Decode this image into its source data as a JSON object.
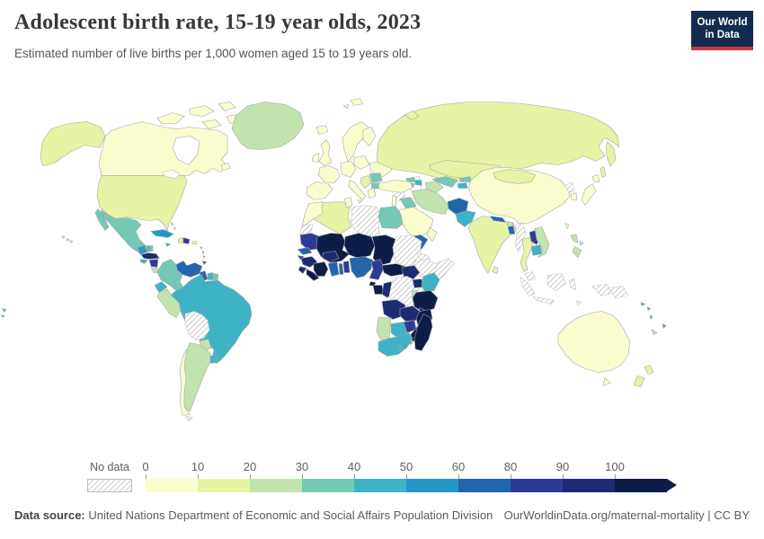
{
  "header": {
    "title": "Adolescent birth rate, 15-19 year olds, 2023",
    "subtitle": "Estimated number of live births per 1,000 women aged 15 to 19 years old."
  },
  "logo": {
    "line1": "Our World",
    "line2": "in Data",
    "bg_color": "#132b4e",
    "stripe_color": "#cf3944"
  },
  "legend": {
    "no_data_label": "No data",
    "ticks": [
      "0",
      "10",
      "20",
      "30",
      "40",
      "50",
      "60",
      "80",
      "90",
      "100"
    ]
  },
  "footer": {
    "source_label": "Data source:",
    "source_text": " United Nations Department of Economic and Social Affairs Population Division",
    "link_text": "OurWorldinData.org/maternal-mortality | CC BY"
  },
  "chart_data": {
    "type": "choropleth",
    "title": "Adolescent birth rate, 15-19 year olds, 2023",
    "metric": "Estimated number of live births per 1,000 women aged 15 to 19 years old",
    "year": 2023,
    "legend_position": "bottom",
    "bins": [
      {
        "range": "0-10",
        "color": "#fbfccd"
      },
      {
        "range": "10-20",
        "color": "#e7f3a5"
      },
      {
        "range": "20-30",
        "color": "#c2e3ae"
      },
      {
        "range": "30-40",
        "color": "#74c8b4"
      },
      {
        "range": "40-50",
        "color": "#3fb3c6"
      },
      {
        "range": "50-60",
        "color": "#2497c6"
      },
      {
        "range": "60-80",
        "color": "#2365ab"
      },
      {
        "range": "80-90",
        "color": "#2d3a96"
      },
      {
        "range": "90-100",
        "color": "#1e2b72"
      },
      {
        "range": "100+",
        "color": "#0e1c48"
      }
    ],
    "no_data": {
      "label": "No data",
      "pattern": "diagonal-hatch"
    },
    "countries": {
      "canada": "0-10",
      "united-states": "10-20",
      "greenland": "20-30",
      "mexico": "30-40",
      "guatemala": "50-60",
      "belize": "40-50",
      "honduras": "90-100",
      "el-salvador": "40-50",
      "nicaragua": "80-90",
      "costa-rica": "20-30",
      "panama": "60-80",
      "cuba": "50-60",
      "jamaica": "40-50",
      "haiti": "10-20",
      "dominican-republic": "80-90",
      "puerto-rico": "10-20",
      "bahamas": "0-10",
      "lesser-antilles": "40-50",
      "trinidad-and-tobago": "60-80",
      "colombia": "30-40",
      "venezuela": "60-80",
      "guyana": "60-80",
      "suriname": "40-50",
      "french-guiana": "30-40",
      "ecuador": "40-50",
      "peru": "20-30",
      "brazil": "40-50",
      "bolivia": "no-data",
      "paraguay": "20-30",
      "uruguay": "40-50",
      "argentina": "20-30",
      "chile": "0-10",
      "fiji-west": "40-50",
      "iceland": "0-10",
      "united-kingdom": "0-10",
      "ireland": "0-10",
      "scandinavia": "0-10",
      "finland": "0-10",
      "denmark": "0-10",
      "iberia": "0-10",
      "france": "0-10",
      "central-europe": "0-10",
      "italy": "0-10",
      "poland-baltics": "0-10",
      "ukraine-belarus": "0-10",
      "romania": "30-40",
      "bulgaria": "30-40",
      "western-balkans": "10-20",
      "greece": "0-10",
      "svalbard": "0-10",
      "russia": "10-20",
      "kazakhstan": "10-20",
      "uzbekistan": "30-40",
      "turkmenistan": "20-30",
      "kyrgyzstan": "30-40",
      "tajikistan": "40-50",
      "georgia": "30-40",
      "azerbaijan": "40-50",
      "armenia": "30-40",
      "turkey": "0-10",
      "syria": "no-data",
      "levant": "0-10",
      "iraq": "30-40",
      "iran": "20-30",
      "saudi-arabia": "0-10",
      "yemen": "60-80",
      "oman": "0-10",
      "afghanistan": "60-80",
      "pakistan": "40-50",
      "india": "10-20",
      "nepal": "60-80",
      "bhutan": "20-30",
      "bangladesh": "60-80",
      "sri-lanka": "10-20",
      "myanmar": "no-data",
      "thailand": "10-20",
      "laos": "80-90",
      "vietnam": "20-30",
      "cambodia": "40-50",
      "malaysia": "no-data",
      "indonesia": "no-data",
      "papua-new-guinea": "no-data",
      "timor": "no-data",
      "philippines": "20-30",
      "china": "0-10",
      "mongolia": "10-20",
      "north-korea": "no-data",
      "south-korea": "0-10",
      "japan": "0-10",
      "taiwan": "0-10",
      "australia": "0-10",
      "new-zealand": "10-20",
      "solomon-islands": "40-50",
      "vanuatu": "40-50",
      "fiji": "40-50",
      "new-caledonia": "20-30",
      "morocco": "0-10",
      "western-sahara": "no-data",
      "algeria": "10-20",
      "tunisia": "0-10",
      "libya": "no-data",
      "egypt": "30-40",
      "mauritania": "80-90",
      "mali": "100+",
      "niger": "100+",
      "chad": "100+",
      "sudan": "no-data",
      "eritrea": "no-data",
      "ethiopia": "no-data",
      "somalia": "no-data",
      "senegal": "60-80",
      "guinea-bissau": "80-90",
      "guinea": "90-100",
      "sierra-leone": "90-100",
      "liberia": "100+",
      "cote-divoire": "100+",
      "burkina-faso": "90-100",
      "ghana": "60-80",
      "togo": "60-80",
      "benin": "80-90",
      "nigeria": "60-80",
      "cameroon": "80-90",
      "central-african-republic": "100+",
      "south-sudan": "90-100",
      "equatorial-guinea": "100+",
      "gabon": "100+",
      "congo": "90-100",
      "democratic-republic-of-congo": "no-data",
      "uganda": "90-100",
      "kenya": "40-50",
      "rwanda-burundi": "20-30",
      "tanzania": "100+",
      "angola": "90-100",
      "zambia": "90-100",
      "malawi": "90-100",
      "mozambique": "100+",
      "madagascar": "100+",
      "zimbabwe": "80-90",
      "botswana": "40-50",
      "namibia": "20-30",
      "south-africa": "40-50",
      "lesotho": "40-50",
      "eswatini": "40-50"
    }
  }
}
